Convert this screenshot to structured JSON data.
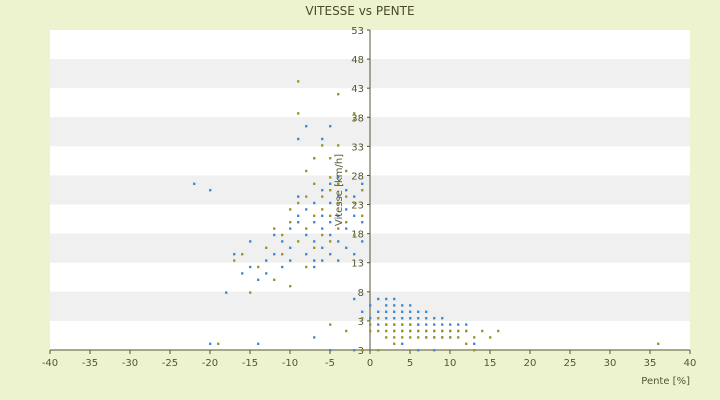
{
  "chart_data": {
    "type": "scatter",
    "title": "VITESSE vs PENTE",
    "xlabel": "Pente [%]",
    "ylabel": "Vitesse [km/h]",
    "xlim": [
      -40,
      40
    ],
    "ylim": [
      3,
      53
    ],
    "x_ticks": [
      "-40",
      "-35",
      "-30",
      "-25",
      "-20",
      "-15",
      "-10",
      "-5",
      "0",
      "5",
      "10",
      "15",
      "20",
      "25",
      "30",
      "35",
      "40"
    ],
    "y_ticks": [
      "53",
      "48",
      "43",
      "38",
      "33",
      "28",
      "23",
      "18",
      "13",
      "8",
      "3",
      "3"
    ],
    "grid": "horizontal bands",
    "legend": "none",
    "colors": {
      "series_a": "#3a8fd6",
      "series_b": "#9a9a20",
      "band": "#f0f0f0",
      "axis": "#555533"
    },
    "series": [
      {
        "color": "#3a8fd6",
        "points": [
          [
            -22,
            29
          ],
          [
            -20,
            28
          ],
          [
            -18,
            12
          ],
          [
            -17,
            18
          ],
          [
            -16,
            15
          ],
          [
            -15,
            20
          ],
          [
            -15,
            16
          ],
          [
            -14,
            14
          ],
          [
            -13,
            17
          ],
          [
            -13,
            15
          ],
          [
            -12,
            21
          ],
          [
            -12,
            18
          ],
          [
            -11,
            20
          ],
          [
            -11,
            16
          ],
          [
            -10,
            17
          ],
          [
            -10,
            19
          ],
          [
            -10,
            22
          ],
          [
            -9,
            23
          ],
          [
            -9,
            24
          ],
          [
            -9,
            27
          ],
          [
            -9,
            36
          ],
          [
            -8,
            25
          ],
          [
            -8,
            21
          ],
          [
            -8,
            18
          ],
          [
            -8,
            38
          ],
          [
            -7,
            26
          ],
          [
            -7,
            23
          ],
          [
            -7,
            20
          ],
          [
            -7,
            17
          ],
          [
            -7,
            16
          ],
          [
            -7,
            33
          ],
          [
            -6,
            28
          ],
          [
            -6,
            24
          ],
          [
            -6,
            22
          ],
          [
            -6,
            19
          ],
          [
            -6,
            17
          ],
          [
            -6,
            36
          ],
          [
            -5,
            29
          ],
          [
            -5,
            26
          ],
          [
            -5,
            23
          ],
          [
            -5,
            21
          ],
          [
            -5,
            18
          ],
          [
            -5,
            38
          ],
          [
            -4,
            30
          ],
          [
            -4,
            27
          ],
          [
            -4,
            24
          ],
          [
            -4,
            20
          ],
          [
            -4,
            17
          ],
          [
            -3,
            28
          ],
          [
            -3,
            25
          ],
          [
            -3,
            22
          ],
          [
            -3,
            19
          ],
          [
            -2,
            27
          ],
          [
            -2,
            24
          ],
          [
            -2,
            21
          ],
          [
            -2,
            18
          ],
          [
            -2,
            11
          ],
          [
            -1,
            29
          ],
          [
            -1,
            23
          ],
          [
            -1,
            20
          ],
          [
            -1,
            9
          ],
          [
            -20,
            4
          ],
          [
            -14,
            4
          ],
          [
            -7,
            5
          ],
          [
            -5,
            3
          ],
          [
            -2,
            3
          ],
          [
            -1,
            3
          ],
          [
            0,
            8
          ],
          [
            0,
            10
          ],
          [
            1,
            7
          ],
          [
            1,
            9
          ],
          [
            1,
            11
          ],
          [
            2,
            8
          ],
          [
            2,
            10
          ],
          [
            2,
            7
          ],
          [
            2,
            9
          ],
          [
            2,
            11
          ],
          [
            3,
            7
          ],
          [
            3,
            8
          ],
          [
            3,
            9
          ],
          [
            3,
            10
          ],
          [
            3,
            11
          ],
          [
            3,
            6
          ],
          [
            4,
            7
          ],
          [
            4,
            8
          ],
          [
            4,
            9
          ],
          [
            4,
            10
          ],
          [
            4,
            6
          ],
          [
            5,
            7
          ],
          [
            5,
            8
          ],
          [
            5,
            9
          ],
          [
            5,
            6
          ],
          [
            5,
            8
          ],
          [
            5,
            10
          ],
          [
            6,
            7
          ],
          [
            6,
            8
          ],
          [
            6,
            9
          ],
          [
            6,
            6
          ],
          [
            6,
            7
          ],
          [
            7,
            6
          ],
          [
            7,
            7
          ],
          [
            7,
            8
          ],
          [
            7,
            9
          ],
          [
            7,
            5
          ],
          [
            8,
            6
          ],
          [
            8,
            7
          ],
          [
            8,
            8
          ],
          [
            8,
            5
          ],
          [
            9,
            6
          ],
          [
            9,
            7
          ],
          [
            9,
            5
          ],
          [
            9,
            8
          ],
          [
            10,
            6
          ],
          [
            10,
            7
          ],
          [
            10,
            5
          ],
          [
            11,
            6
          ],
          [
            11,
            7
          ],
          [
            12,
            6
          ],
          [
            12,
            7
          ],
          [
            4,
            4
          ],
          [
            6,
            3
          ],
          [
            8,
            3
          ],
          [
            13,
            4
          ]
        ]
      },
      {
        "color": "#9a9a20",
        "points": [
          [
            -19,
            4
          ],
          [
            -17,
            17
          ],
          [
            -16,
            18
          ],
          [
            -15,
            12
          ],
          [
            -14,
            16
          ],
          [
            -13,
            19
          ],
          [
            -12,
            22
          ],
          [
            -12,
            14
          ],
          [
            -11,
            18
          ],
          [
            -11,
            21
          ],
          [
            -10,
            23
          ],
          [
            -10,
            25
          ],
          [
            -10,
            13
          ],
          [
            -9,
            20
          ],
          [
            -9,
            26
          ],
          [
            -9,
            40
          ],
          [
            -9,
            45
          ],
          [
            -8,
            22
          ],
          [
            -8,
            27
          ],
          [
            -8,
            31
          ],
          [
            -8,
            16
          ],
          [
            -7,
            24
          ],
          [
            -7,
            29
          ],
          [
            -7,
            33
          ],
          [
            -7,
            19
          ],
          [
            -6,
            25
          ],
          [
            -6,
            27
          ],
          [
            -6,
            35
          ],
          [
            -6,
            21
          ],
          [
            -5,
            24
          ],
          [
            -5,
            28
          ],
          [
            -5,
            30
          ],
          [
            -5,
            33
          ],
          [
            -5,
            20
          ],
          [
            -4,
            26
          ],
          [
            -4,
            29
          ],
          [
            -4,
            35
          ],
          [
            -4,
            43
          ],
          [
            -4,
            22
          ],
          [
            -3,
            27
          ],
          [
            -3,
            31
          ],
          [
            -3,
            23
          ],
          [
            -2,
            26
          ],
          [
            -2,
            40
          ],
          [
            -2,
            21
          ],
          [
            -2,
            39
          ],
          [
            -1,
            28
          ],
          [
            -1,
            24
          ],
          [
            -1,
            8
          ],
          [
            -1,
            3
          ],
          [
            -5,
            7
          ],
          [
            -3,
            6
          ],
          [
            0,
            7
          ],
          [
            0,
            6
          ],
          [
            1,
            6
          ],
          [
            1,
            8
          ],
          [
            1,
            3
          ],
          [
            2,
            6
          ],
          [
            2,
            7
          ],
          [
            2,
            5
          ],
          [
            3,
            6
          ],
          [
            3,
            7
          ],
          [
            3,
            5
          ],
          [
            3,
            4
          ],
          [
            4,
            6
          ],
          [
            4,
            7
          ],
          [
            4,
            5
          ],
          [
            5,
            6
          ],
          [
            5,
            7
          ],
          [
            5,
            5
          ],
          [
            6,
            6
          ],
          [
            6,
            5
          ],
          [
            7,
            6
          ],
          [
            7,
            5
          ],
          [
            8,
            6
          ],
          [
            8,
            5
          ],
          [
            9,
            6
          ],
          [
            9,
            5
          ],
          [
            10,
            6
          ],
          [
            10,
            5
          ],
          [
            11,
            6
          ],
          [
            11,
            5
          ],
          [
            12,
            6
          ],
          [
            13,
            5
          ],
          [
            14,
            6
          ],
          [
            15,
            5
          ],
          [
            16,
            6
          ],
          [
            12,
            4
          ],
          [
            13,
            3
          ],
          [
            36,
            4
          ]
        ]
      }
    ]
  }
}
